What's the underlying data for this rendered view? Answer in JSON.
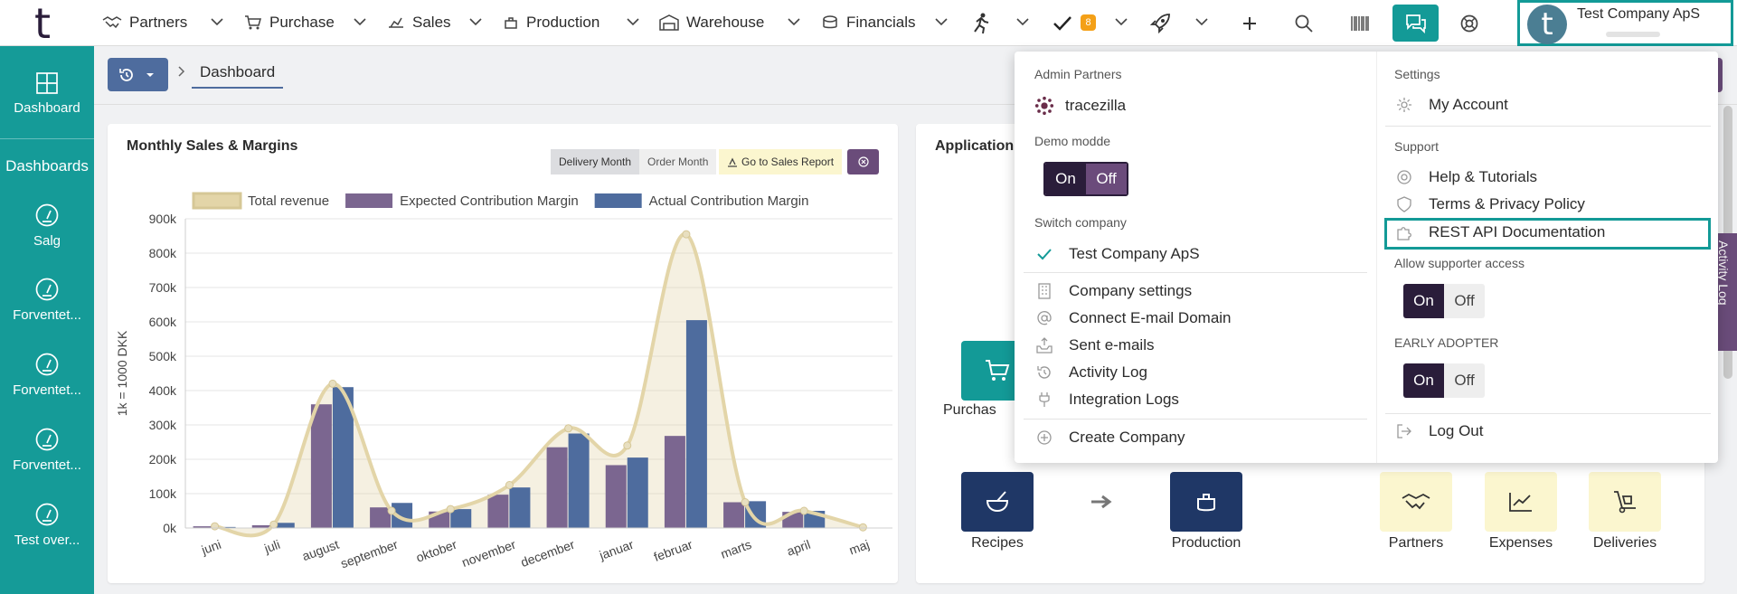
{
  "app": {
    "logo": "t"
  },
  "nav": {
    "items": [
      {
        "label": "Partners",
        "icon": "handshake-icon"
      },
      {
        "label": "Purchase",
        "icon": "cart-icon"
      },
      {
        "label": "Sales",
        "icon": "sales-icon"
      },
      {
        "label": "Production",
        "icon": "pot-icon"
      },
      {
        "label": "Warehouse",
        "icon": "warehouse-icon"
      },
      {
        "label": "Financials",
        "icon": "coins-icon"
      }
    ],
    "tasks_badge": "8",
    "company": "Test Company ApS",
    "company_initial": "t"
  },
  "sidebar": {
    "dashboard_label": "Dashboard",
    "heading": "Dashboards",
    "items": [
      "Salg",
      "Forventet...",
      "Forventet...",
      "Forventet...",
      "Test over..."
    ]
  },
  "breadcrumb": {
    "current": "Dashboard"
  },
  "chart_card": {
    "title": "Monthly Sales & Margins",
    "toggle_delivery": "Delivery Month",
    "toggle_order": "Order Month",
    "sales_report": "Go to Sales Report"
  },
  "apps_card": {
    "title": "Application",
    "tiles": [
      {
        "label": "Purchas",
        "color": "#139a97"
      },
      {
        "label": "Recipes",
        "color": "#1f3766"
      },
      {
        "label": "Production",
        "color": "#1f3766"
      },
      {
        "label": "Partners",
        "color": "#fbf6cf"
      },
      {
        "label": "Expenses",
        "color": "#fbf6cf"
      },
      {
        "label": "Deliveries",
        "color": "#fbf6cf"
      }
    ]
  },
  "menu": {
    "admin_partners": "Admin Partners",
    "admin_partner_name": "tracezilla",
    "demo_mode": "Demo modde",
    "on": "On",
    "off": "Off",
    "switch_company": "Switch company",
    "current_company": "Test Company ApS",
    "company_items": [
      "Company settings",
      "Connect E-mail Domain",
      "Sent e-mails",
      "Activity Log",
      "Integration Logs"
    ],
    "create_company": "Create Company",
    "settings": "Settings",
    "my_account": "My Account",
    "support": "Support",
    "support_items": [
      "Help & Tutorials",
      "Terms & Privacy Policy",
      "REST API Documentation"
    ],
    "allow_supporter": "Allow supporter access",
    "early_adopter": "EARLY ADOPTER",
    "log_out": "Log Out"
  },
  "activity_tab": "Activity Log",
  "colors": {
    "teal": "#159b98",
    "plum": "#6a4c7a",
    "navy": "#1f3766"
  },
  "chart_data": {
    "type": "bar",
    "title": "Monthly Sales & Margins",
    "ylabel": "1k = 1000 DKK",
    "ylim": [
      0,
      900
    ],
    "y_ticks": [
      "0k",
      "100k",
      "200k",
      "300k",
      "400k",
      "500k",
      "600k",
      "700k",
      "800k",
      "900k"
    ],
    "categories": [
      "juni",
      "juli",
      "august",
      "september",
      "oktober",
      "november",
      "december",
      "januar",
      "februar",
      "marts",
      "april",
      "maj"
    ],
    "series": [
      {
        "name": "Total revenue",
        "kind": "area",
        "color": "#e3d5a8",
        "values": [
          5,
          10,
          420,
          50,
          55,
          125,
          290,
          240,
          855,
          75,
          50,
          2
        ]
      },
      {
        "name": "Expected Contribution Margin",
        "kind": "bar",
        "color": "#7b6690",
        "values": [
          5,
          8,
          360,
          60,
          48,
          97,
          235,
          183,
          268,
          75,
          47,
          0
        ]
      },
      {
        "name": "Actual Contribution Margin",
        "kind": "bar",
        "color": "#4e6c9e",
        "values": [
          3,
          15,
          410,
          73,
          55,
          118,
          275,
          205,
          605,
          78,
          50,
          0
        ]
      }
    ],
    "legend": "top"
  }
}
